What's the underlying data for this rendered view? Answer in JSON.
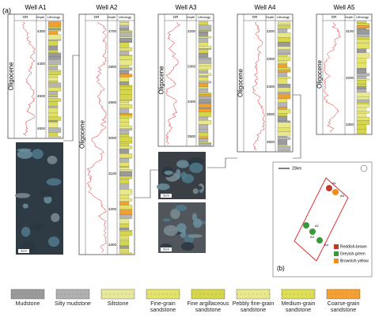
{
  "panel_a": {
    "label": "(a)",
    "headers": {
      "gr": "GR",
      "depth": "Depth",
      "lithology": "Lithology"
    },
    "epoch": "Oligocene",
    "wells": [
      {
        "name": "Well A1",
        "depths": [
          "4300",
          "4400",
          "4500",
          "4600"
        ]
      },
      {
        "name": "Well A2",
        "depths": [
          "2700",
          "2800",
          "2900",
          "3000",
          "3100",
          "3200",
          "3300"
        ]
      },
      {
        "name": "Well A3",
        "depths": [
          "3200",
          "3300",
          "3400",
          "3500"
        ]
      },
      {
        "name": "Well A4",
        "depths": [
          "3200",
          "3300",
          "3400",
          "3500",
          "3600"
        ]
      },
      {
        "name": "Well A5",
        "depths": [
          "3100",
          "3200",
          "3300"
        ]
      }
    ],
    "photo_scales": [
      "5cm",
      "5cm",
      "5cm"
    ]
  },
  "panel_b": {
    "label": "(b)",
    "scale": "20km",
    "wells": [
      "A1",
      "A2",
      "A3",
      "A4",
      "A5"
    ],
    "legend": [
      {
        "name": "Reddish-brown",
        "color": "#c0392b"
      },
      {
        "name": "Greyish-green",
        "color": "#3a9a3a"
      },
      {
        "name": "Brownish yellow",
        "color": "#f08c1e"
      }
    ]
  },
  "lithology_legend": [
    "Mudstone",
    "Silty mudstone",
    "Siltstone",
    "Fine-grain sandstone",
    "Fine argillaceous sandstone",
    "Pebbly fine-grain sandstone",
    "Medium-grain sandstone",
    "Coarse-grain sandstone"
  ]
}
